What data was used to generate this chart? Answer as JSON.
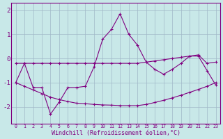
{
  "xlabel": "Windchill (Refroidissement éolien,°C)",
  "x_values": [
    0,
    1,
    2,
    3,
    4,
    5,
    6,
    7,
    8,
    9,
    10,
    11,
    12,
    13,
    14,
    15,
    16,
    17,
    18,
    19,
    20,
    21,
    22,
    23
  ],
  "main_line": [
    -1.0,
    -0.2,
    -1.2,
    -1.2,
    -2.3,
    -1.8,
    -1.2,
    -1.2,
    -1.15,
    -0.35,
    0.8,
    1.2,
    1.85,
    1.0,
    0.55,
    -0.15,
    -0.45,
    -0.65,
    -0.45,
    -0.2,
    0.1,
    0.1,
    -0.5,
    -1.1
  ],
  "upper_line": [
    -0.2,
    -0.2,
    -0.2,
    -0.2,
    -0.2,
    -0.2,
    -0.2,
    -0.2,
    -0.2,
    -0.2,
    -0.2,
    -0.2,
    -0.2,
    -0.2,
    -0.2,
    -0.15,
    -0.1,
    -0.05,
    0.0,
    0.05,
    0.1,
    0.15,
    -0.2,
    -0.15
  ],
  "lower_line": [
    -1.0,
    -1.15,
    -1.3,
    -1.45,
    -1.6,
    -1.7,
    -1.78,
    -1.85,
    -1.87,
    -1.9,
    -1.92,
    -1.93,
    -1.95,
    -1.95,
    -1.95,
    -1.9,
    -1.82,
    -1.73,
    -1.63,
    -1.52,
    -1.4,
    -1.28,
    -1.15,
    -1.0
  ],
  "line_color": "#800080",
  "bg_color": "#c8e8e8",
  "grid_color": "#a0b8c8",
  "ylim": [
    -2.7,
    2.3
  ],
  "yticks": [
    -2,
    -1,
    0,
    1,
    2
  ],
  "xlim": [
    -0.5,
    23.5
  ]
}
